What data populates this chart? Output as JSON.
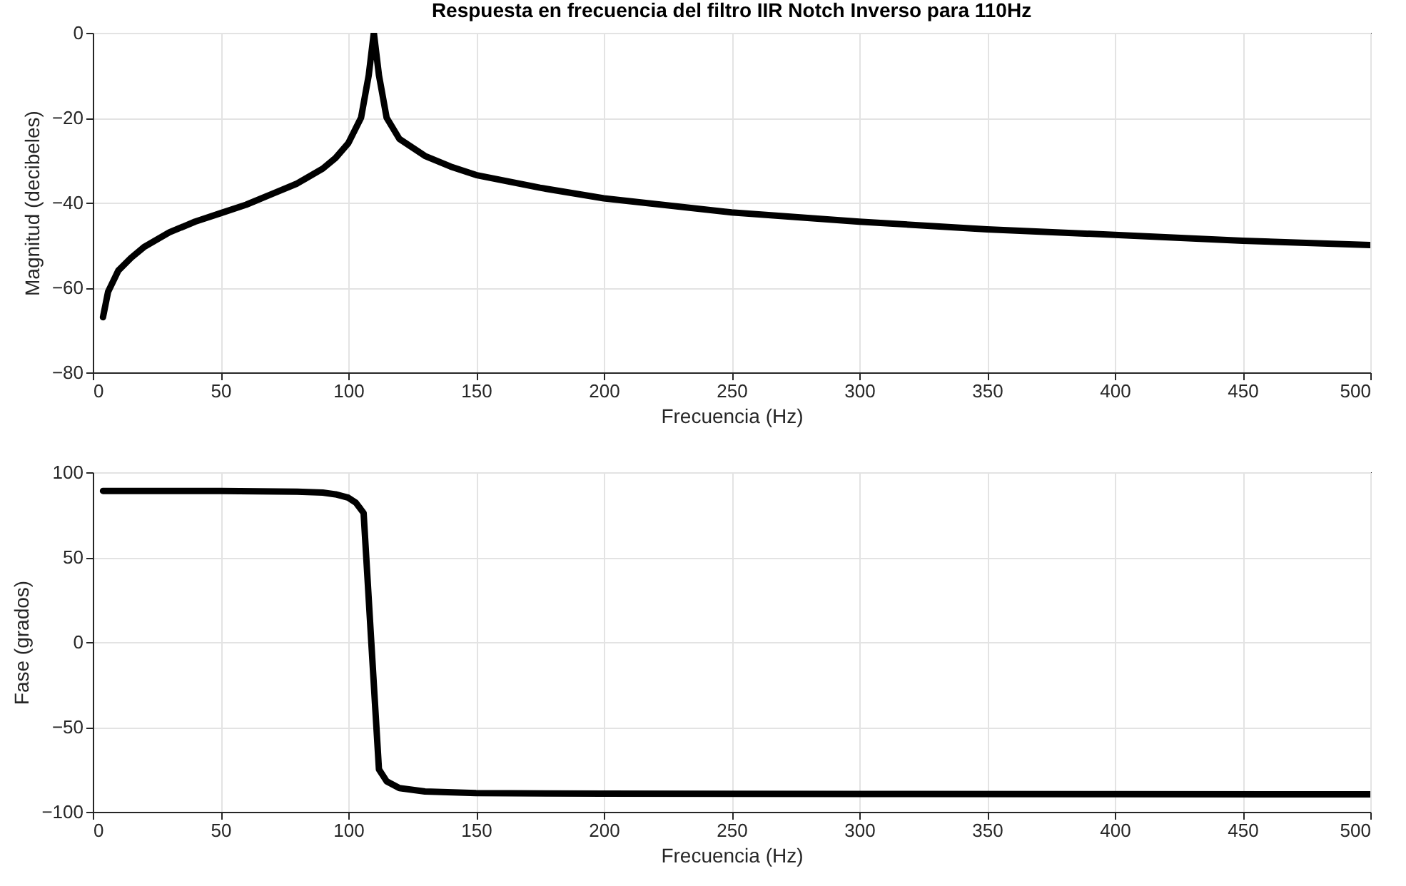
{
  "chart_data": [
    {
      "type": "line",
      "title": "Respuesta en frecuencia del filtro IIR Notch Inverso para 110Hz",
      "xlabel": "Frecuencia (Hz)",
      "ylabel": "Magnitud (decibeles)",
      "xlim": [
        0,
        500
      ],
      "xticks": [
        0,
        50,
        100,
        150,
        200,
        250,
        300,
        350,
        400,
        450,
        500
      ],
      "ylim": [
        -80,
        0
      ],
      "yticks": [
        -80,
        -60,
        -40,
        -20,
        0
      ],
      "grid": true,
      "line_style": "solid",
      "series": [
        {
          "color": "#000000",
          "x": [
            4,
            6,
            10,
            15,
            20,
            30,
            40,
            50,
            60,
            70,
            80,
            90,
            95,
            100,
            105,
            108,
            110,
            112,
            115,
            120,
            130,
            140,
            150,
            175,
            200,
            250,
            300,
            350,
            400,
            450,
            500
          ],
          "values": [
            -67,
            -61,
            -56,
            -53,
            -50.5,
            -47,
            -44.5,
            -42.5,
            -40.5,
            -38,
            -35.5,
            -32,
            -29.5,
            -26,
            -20,
            -10,
            0,
            -10,
            -20,
            -25,
            -29,
            -31.5,
            -33.5,
            -36.5,
            -39,
            -42.3,
            -44.5,
            -46.3,
            -47.6,
            -49,
            -50
          ]
        }
      ]
    },
    {
      "type": "line",
      "xlabel": "Frecuencia (Hz)",
      "ylabel": "Fase (grados)",
      "xlim": [
        0,
        500
      ],
      "xticks": [
        0,
        50,
        100,
        150,
        200,
        250,
        300,
        350,
        400,
        450,
        500
      ],
      "ylim": [
        -100,
        100
      ],
      "yticks": [
        -100,
        -50,
        0,
        50,
        100
      ],
      "grid": true,
      "line_style": "solid",
      "series": [
        {
          "color": "#000000",
          "x": [
            4,
            50,
            80,
            90,
            95,
            100,
            103,
            106,
            109,
            112,
            115,
            120,
            130,
            150,
            200,
            300,
            400,
            500
          ],
          "values": [
            89,
            89,
            88.5,
            88,
            87,
            85,
            82,
            76,
            0,
            -75,
            -82,
            -86,
            -88,
            -89,
            -89.3,
            -89.5,
            -89.6,
            -89.7
          ]
        }
      ]
    }
  ]
}
